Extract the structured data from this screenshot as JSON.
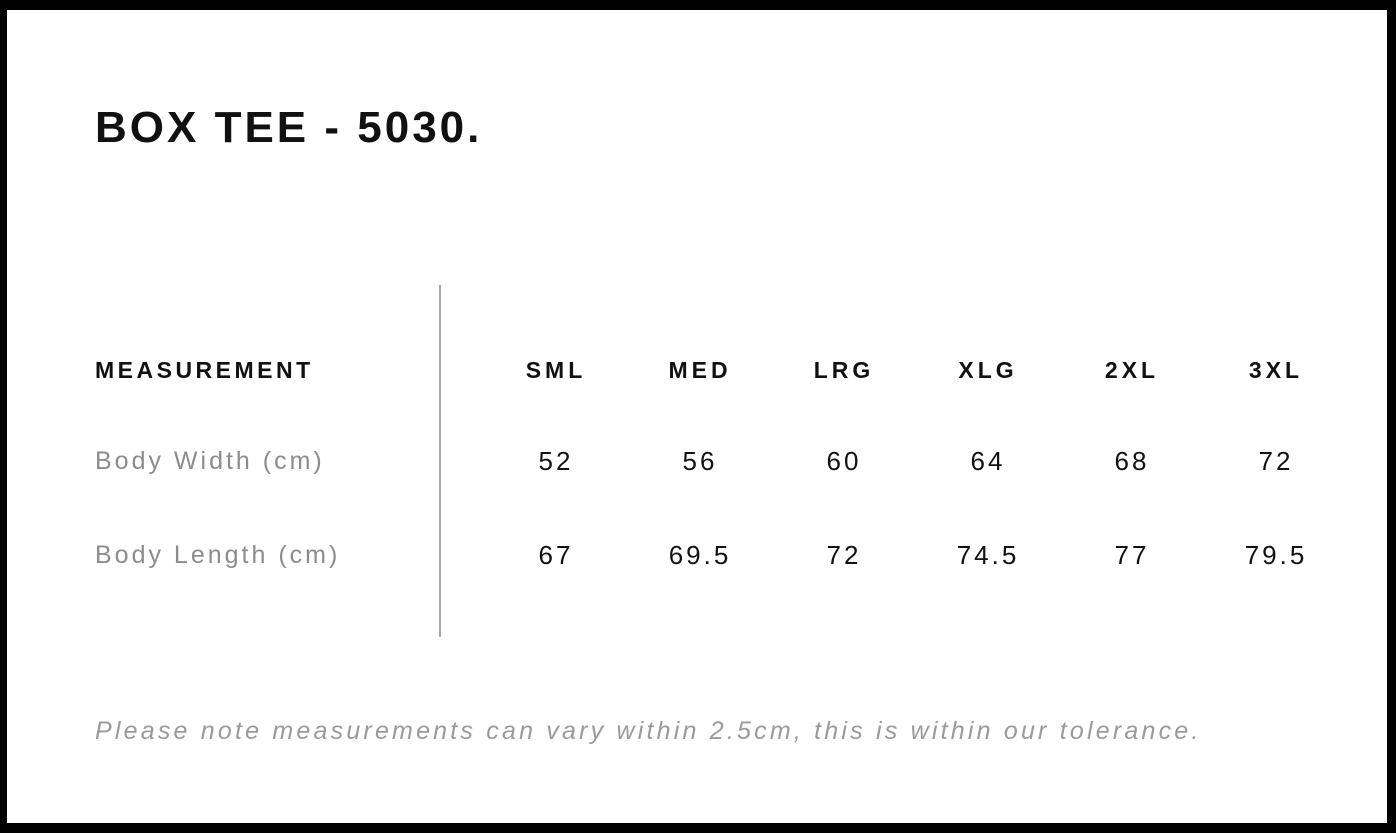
{
  "header": {
    "title": "BOX TEE - 5030."
  },
  "table": {
    "columns": [
      "MEASUREMENT",
      "SML",
      "MED",
      "LRG",
      "XLG",
      "2XL",
      "3XL"
    ],
    "rows": [
      {
        "label": "Body Width (cm)",
        "values": [
          "52",
          "56",
          "60",
          "64",
          "68",
          "72"
        ]
      },
      {
        "label": "Body Length (cm)",
        "values": [
          "67",
          "69.5",
          "72",
          "74.5",
          "77",
          "79.5"
        ]
      }
    ]
  },
  "footer": {
    "note": "Please note measurements can vary within 2.5cm, this is within our tolerance."
  },
  "colors": {
    "frame": "#000000",
    "background": "#ffffff",
    "heading_text": "#111111",
    "row_label_gray": "#8c8c8c",
    "note_gray": "#9a9a9a",
    "divider_gray": "#a6a6a6"
  },
  "chart_data": {
    "type": "table",
    "title": "BOX TEE - 5030.",
    "columns": [
      "MEASUREMENT",
      "SML",
      "MED",
      "LRG",
      "XLG",
      "2XL",
      "3XL"
    ],
    "rows": [
      [
        "Body Width (cm)",
        52,
        56,
        60,
        64,
        68,
        72
      ],
      [
        "Body Length (cm)",
        67,
        69.5,
        72,
        74.5,
        77,
        79.5
      ]
    ],
    "units": "cm",
    "tolerance_note": "Please note measurements can vary within 2.5cm, this is within our tolerance.",
    "layout": {
      "label_column_divider": true,
      "grid": false
    }
  }
}
